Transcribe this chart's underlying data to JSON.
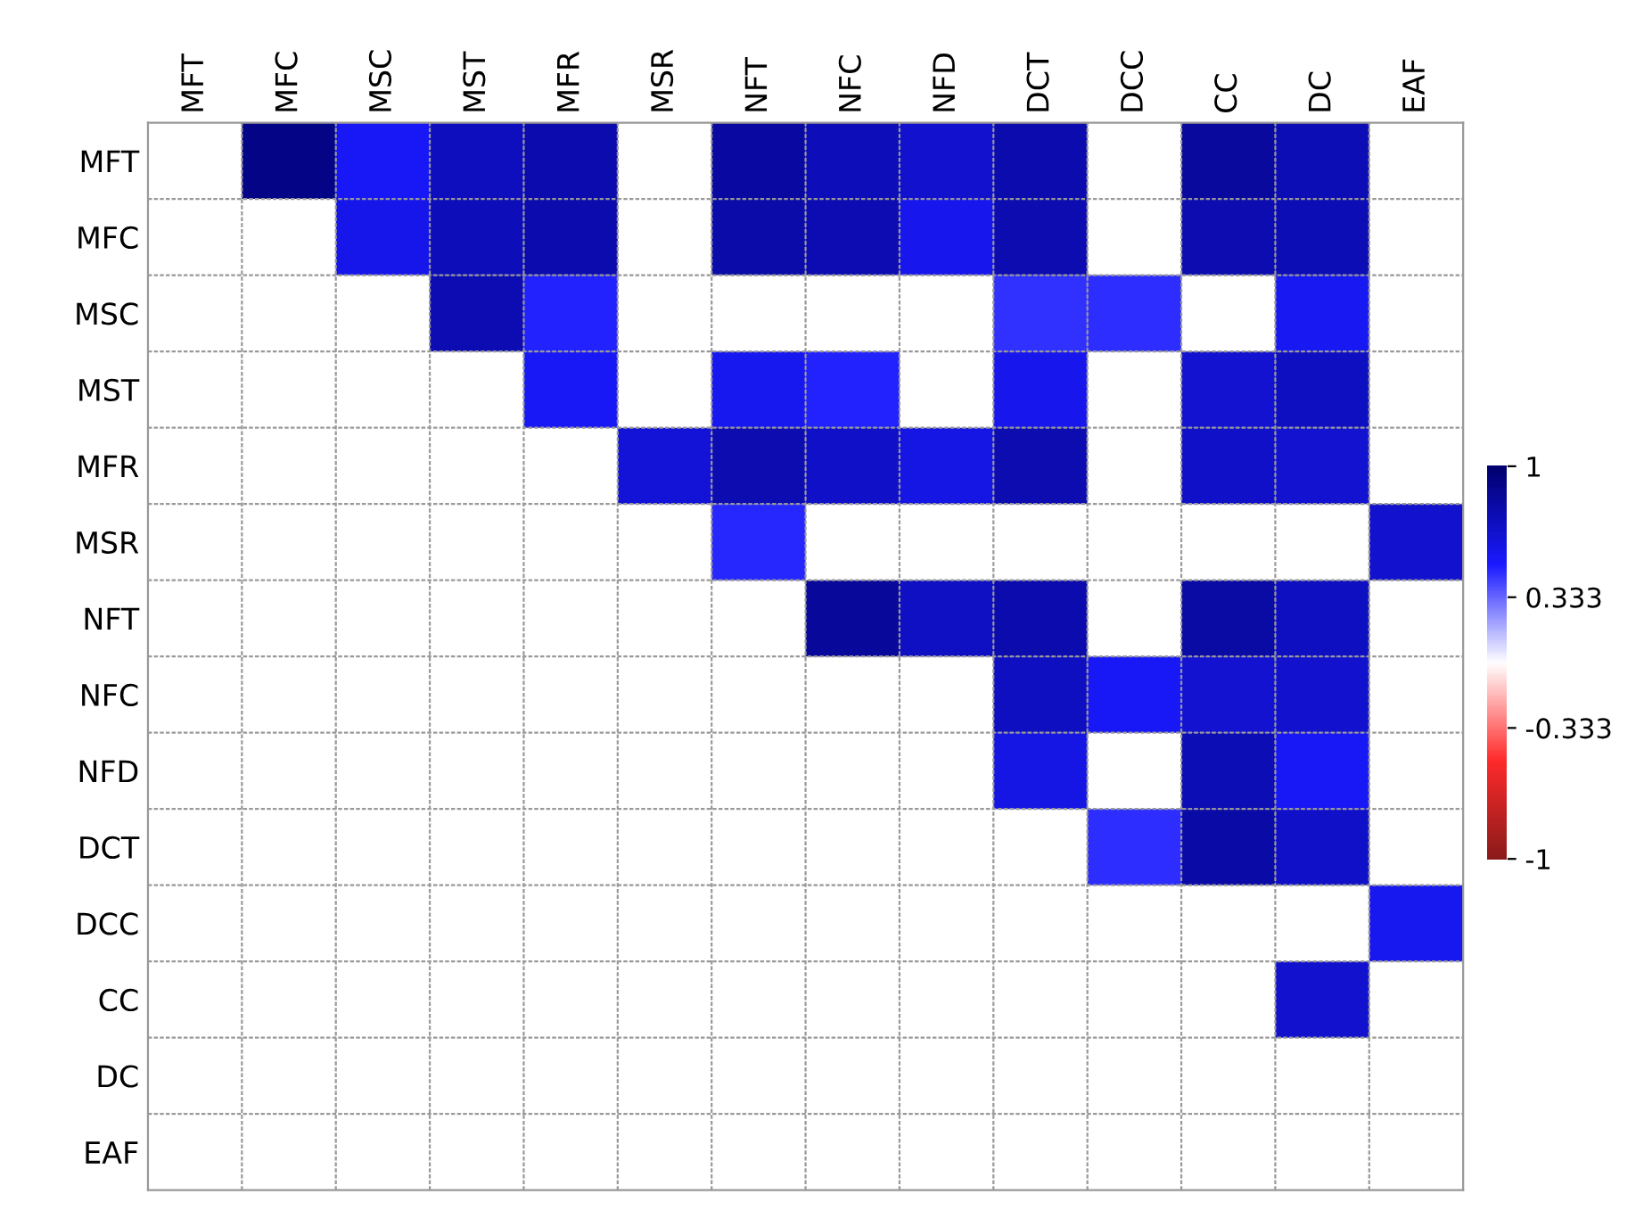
{
  "chart_data": {
    "type": "heatmap",
    "categories": [
      "MFT",
      "MFC",
      "MSC",
      "MST",
      "MFR",
      "MSR",
      "NFT",
      "NFC",
      "NFD",
      "DCT",
      "DCC",
      "CC",
      "DC",
      "EAF"
    ],
    "y_categories": [
      "MFT",
      "MFC",
      "MSC",
      "MST",
      "MFR",
      "MSR",
      "NFT",
      "NFC",
      "NFD",
      "DCT",
      "DCC",
      "CC",
      "DC",
      "EAF"
    ],
    "cells": [
      [
        null,
        0.91,
        0.53,
        0.72,
        0.78,
        null,
        0.82,
        0.74,
        0.67,
        0.78,
        null,
        0.83,
        0.75,
        null
      ],
      [
        null,
        null,
        0.57,
        0.74,
        0.78,
        null,
        0.79,
        0.76,
        0.56,
        0.77,
        null,
        0.77,
        0.75,
        null
      ],
      [
        null,
        null,
        null,
        0.76,
        0.48,
        null,
        null,
        null,
        null,
        0.45,
        0.46,
        null,
        0.54,
        null
      ],
      [
        null,
        null,
        null,
        null,
        0.53,
        null,
        0.55,
        0.48,
        null,
        0.56,
        null,
        0.66,
        0.71,
        null
      ],
      [
        null,
        null,
        null,
        null,
        null,
        0.64,
        0.77,
        0.68,
        0.59,
        0.77,
        null,
        0.68,
        0.66,
        null
      ],
      [
        null,
        null,
        null,
        null,
        null,
        null,
        0.47,
        null,
        null,
        null,
        null,
        null,
        null,
        0.67
      ],
      [
        null,
        null,
        null,
        null,
        null,
        null,
        null,
        0.84,
        0.7,
        0.78,
        null,
        0.81,
        0.71,
        null
      ],
      [
        null,
        null,
        null,
        null,
        null,
        null,
        null,
        null,
        null,
        0.71,
        0.53,
        0.66,
        0.67,
        null
      ],
      [
        null,
        null,
        null,
        null,
        null,
        null,
        null,
        null,
        null,
        0.59,
        null,
        0.75,
        0.53,
        null
      ],
      [
        null,
        null,
        null,
        null,
        null,
        null,
        null,
        null,
        null,
        null,
        0.46,
        0.8,
        0.68,
        null
      ],
      [
        null,
        null,
        null,
        null,
        null,
        null,
        null,
        null,
        null,
        null,
        null,
        null,
        null,
        0.55
      ],
      [
        null,
        null,
        null,
        null,
        null,
        null,
        null,
        null,
        null,
        null,
        null,
        null,
        0.67,
        null
      ],
      [
        null,
        null,
        null,
        null,
        null,
        null,
        null,
        null,
        null,
        null,
        null,
        null,
        null,
        null
      ],
      [
        null,
        null,
        null,
        null,
        null,
        null,
        null,
        null,
        null,
        null,
        null,
        null,
        null,
        null
      ]
    ],
    "clim": [
      -1,
      1
    ],
    "cticks": [
      1,
      {
        "value": 0.333,
        "label": "0.333"
      },
      {
        "value": -0.333,
        "label": "-0.333"
      },
      -1
    ],
    "grid": true
  }
}
